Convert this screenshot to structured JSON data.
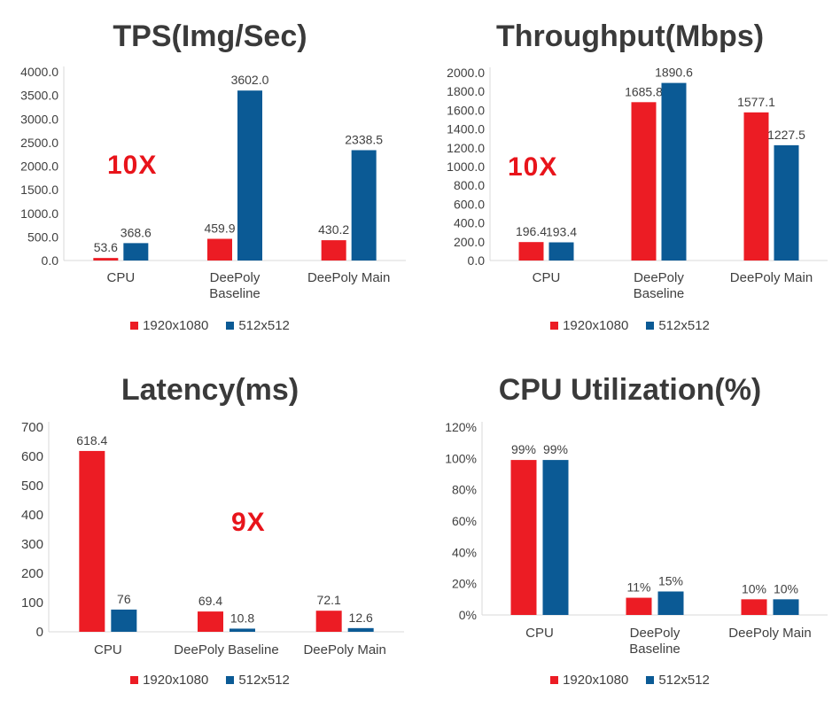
{
  "colors": {
    "series_1": "#ec1c24",
    "series_2": "#0b5a95",
    "axis": "#d9d9d9",
    "text": "#404040",
    "annotation": "#e8141b"
  },
  "legend": [
    "1920x1080",
    "512x512"
  ],
  "chart_data": [
    {
      "type": "bar",
      "title": "TPS(Img/Sec)",
      "categories": [
        [
          "CPU"
        ],
        [
          "DeePoly",
          "Baseline"
        ],
        [
          "DeePoly Main"
        ]
      ],
      "series": [
        {
          "name": "1920x1080",
          "values": [
            53.6,
            459.9,
            430.2
          ],
          "labels": [
            "53.6",
            "459.9",
            "430.2"
          ]
        },
        {
          "name": "512x512",
          "values": [
            368.6,
            3602.0,
            2338.5
          ],
          "labels": [
            "368.6",
            "3602.0",
            "2338.5"
          ]
        }
      ],
      "ylim": [
        0,
        4000
      ],
      "yticks": [
        0,
        500,
        1000,
        1500,
        2000,
        2500,
        3000,
        3500,
        4000
      ],
      "ytick_labels": [
        "0.0",
        "500.0",
        "1000.0",
        "1500.0",
        "2000.0",
        "2500.0",
        "3000.0",
        "3500.0",
        "4000.0"
      ],
      "annotation": "10X",
      "legend_position": "bottom",
      "grid": false
    },
    {
      "type": "bar",
      "title": "Throughput(Mbps)",
      "categories": [
        [
          "CPU"
        ],
        [
          "DeePoly",
          "Baseline"
        ],
        [
          "DeePoly Main"
        ]
      ],
      "series": [
        {
          "name": "1920x1080",
          "values": [
            196.4,
            1685.8,
            1577.1
          ],
          "labels": [
            "196.4",
            "1685.8",
            "1577.1"
          ]
        },
        {
          "name": "512x512",
          "values": [
            193.4,
            1890.6,
            1227.5
          ],
          "labels": [
            "193.4",
            "1890.6",
            "1227.5"
          ]
        }
      ],
      "ylim": [
        0,
        2000
      ],
      "yticks": [
        0,
        200,
        400,
        600,
        800,
        1000,
        1200,
        1400,
        1600,
        1800,
        2000
      ],
      "ytick_labels": [
        "0.0",
        "200.0",
        "400.0",
        "600.0",
        "800.0",
        "1000.0",
        "1200.0",
        "1400.0",
        "1600.0",
        "1800.0",
        "2000.0"
      ],
      "annotation": "10X",
      "legend_position": "bottom",
      "grid": false
    },
    {
      "type": "bar",
      "title": "Latency(ms)",
      "categories": [
        [
          "CPU"
        ],
        [
          "DeePoly Baseline"
        ],
        [
          "DeePoly Main"
        ]
      ],
      "series": [
        {
          "name": "1920x1080",
          "values": [
            618.4,
            69.4,
            72.1
          ],
          "labels": [
            "618.4",
            "69.4",
            "72.1"
          ]
        },
        {
          "name": "512x512",
          "values": [
            76,
            10.8,
            12.6
          ],
          "labels": [
            "76",
            "10.8",
            "12.6"
          ]
        }
      ],
      "ylim": [
        0,
        700
      ],
      "yticks": [
        0,
        100,
        200,
        300,
        400,
        500,
        600,
        700
      ],
      "ytick_labels": [
        "0",
        "100",
        "200",
        "300",
        "400",
        "500",
        "600",
        "700"
      ],
      "annotation": "9X",
      "legend_position": "bottom",
      "grid": false
    },
    {
      "type": "bar",
      "title": "CPU Utilization(%)",
      "categories": [
        [
          "CPU"
        ],
        [
          "DeePoly",
          "Baseline"
        ],
        [
          "DeePoly Main"
        ]
      ],
      "series": [
        {
          "name": "1920x1080",
          "values": [
            99,
            11,
            10
          ],
          "labels": [
            "99%",
            "11%",
            "10%"
          ]
        },
        {
          "name": "512x512",
          "values": [
            99,
            15,
            10
          ],
          "labels": [
            "99%",
            "15%",
            "10%"
          ]
        }
      ],
      "ylim": [
        0,
        120
      ],
      "yticks": [
        0,
        20,
        40,
        60,
        80,
        100,
        120
      ],
      "ytick_labels": [
        "0%",
        "20%",
        "40%",
        "60%",
        "80%",
        "100%",
        "120%"
      ],
      "annotation": "",
      "legend_position": "bottom",
      "grid": false
    }
  ]
}
